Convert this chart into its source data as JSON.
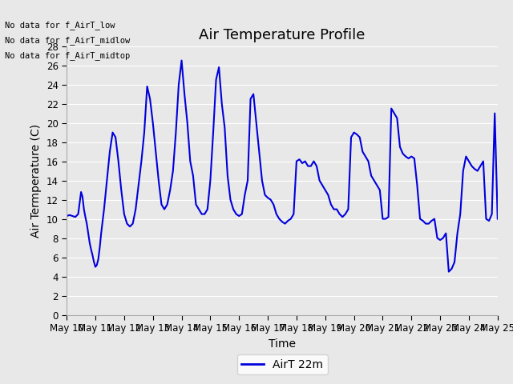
{
  "title": "Air Temperature Profile",
  "xlabel": "Time",
  "ylabel": "Air Termperature (C)",
  "ylim": [
    0,
    28
  ],
  "yticks": [
    0,
    2,
    4,
    6,
    8,
    10,
    12,
    14,
    16,
    18,
    20,
    22,
    24,
    26,
    28
  ],
  "line_color": "#0000dd",
  "line_width": 1.5,
  "legend_label": "AirT 22m",
  "no_data_texts": [
    "No data for f_AirT_low",
    "No data for f_AirT_midlow",
    "No data for f_AirT_midtop"
  ],
  "bg_color": "#e8e8e8",
  "plot_bg_color": "#e8e8e8",
  "grid_color": "#ffffff",
  "title_fontsize": 13,
  "axis_fontsize": 10,
  "tick_fontsize": 8.5,
  "xtick_labels": [
    "May 10",
    "May 11",
    "May 12",
    "May 13",
    "May 14",
    "May 15",
    "May 16",
    "May 17",
    "May 18",
    "May 19",
    "May 20",
    "May 21",
    "May 22",
    "May 23",
    "May 24",
    "May 25"
  ],
  "timestamps": [
    0.0,
    0.1,
    0.2,
    0.3,
    0.4,
    0.5,
    0.55,
    0.6,
    0.65,
    0.7,
    0.75,
    0.8,
    0.85,
    0.9,
    0.95,
    1.0,
    1.05,
    1.1,
    1.15,
    1.2,
    1.3,
    1.4,
    1.5,
    1.6,
    1.7,
    1.8,
    1.9,
    2.0,
    2.1,
    2.2,
    2.3,
    2.4,
    2.5,
    2.6,
    2.7,
    2.8,
    2.9,
    3.0,
    3.1,
    3.2,
    3.3,
    3.4,
    3.5,
    3.6,
    3.7,
    3.8,
    3.9,
    4.0,
    4.1,
    4.2,
    4.3,
    4.4,
    4.5,
    4.6,
    4.7,
    4.8,
    4.9,
    5.0,
    5.1,
    5.2,
    5.3,
    5.4,
    5.5,
    5.6,
    5.7,
    5.8,
    5.9,
    6.0,
    6.1,
    6.2,
    6.3,
    6.4,
    6.5,
    6.6,
    6.7,
    6.8,
    6.9,
    7.0,
    7.1,
    7.2,
    7.3,
    7.4,
    7.5,
    7.6,
    7.7,
    7.8,
    7.9,
    8.0,
    8.1,
    8.2,
    8.3,
    8.4,
    8.5,
    8.6,
    8.7,
    8.8,
    8.9,
    9.0,
    9.1,
    9.2,
    9.3,
    9.4,
    9.5,
    9.6,
    9.7,
    9.8,
    9.9,
    10.0,
    10.1,
    10.2,
    10.3,
    10.4,
    10.5,
    10.6,
    10.7,
    10.8,
    10.9,
    11.0,
    11.1,
    11.2,
    11.3,
    11.4,
    11.5,
    11.6,
    11.7,
    11.8,
    11.9,
    12.0,
    12.1,
    12.2,
    12.3,
    12.4,
    12.5,
    12.6,
    12.7,
    12.8,
    12.9,
    13.0,
    13.1,
    13.2,
    13.3,
    13.4,
    13.5,
    13.6,
    13.7,
    13.8,
    13.9,
    14.0,
    14.1,
    14.2,
    14.3,
    14.4,
    14.5,
    14.6,
    14.7,
    14.8,
    14.9,
    15.0
  ],
  "temperatures": [
    10.3,
    10.4,
    10.3,
    10.2,
    10.5,
    12.8,
    12.3,
    11.0,
    10.2,
    9.5,
    8.5,
    7.5,
    6.8,
    6.2,
    5.5,
    5.0,
    5.2,
    5.8,
    7.0,
    8.5,
    11.0,
    14.0,
    17.0,
    19.0,
    18.5,
    16.0,
    13.0,
    10.5,
    9.5,
    9.2,
    9.5,
    11.0,
    13.5,
    16.0,
    19.0,
    23.8,
    22.5,
    20.0,
    17.0,
    14.0,
    11.5,
    11.0,
    11.5,
    13.0,
    15.0,
    19.0,
    24.0,
    26.5,
    23.0,
    20.0,
    16.0,
    14.5,
    11.5,
    11.0,
    10.5,
    10.5,
    11.0,
    14.0,
    19.0,
    24.5,
    25.8,
    22.0,
    19.5,
    14.5,
    12.0,
    11.0,
    10.5,
    10.3,
    10.5,
    12.5,
    14.0,
    22.5,
    23.0,
    20.0,
    17.0,
    14.0,
    12.5,
    12.2,
    12.0,
    11.5,
    10.5,
    10.0,
    9.7,
    9.5,
    9.8,
    10.0,
    10.5,
    16.0,
    16.2,
    15.8,
    16.0,
    15.5,
    15.5,
    16.0,
    15.5,
    14.0,
    13.5,
    13.0,
    12.5,
    11.5,
    11.0,
    11.0,
    10.5,
    10.2,
    10.5,
    11.0,
    18.5,
    19.0,
    18.8,
    18.5,
    17.0,
    16.5,
    16.0,
    14.5,
    14.0,
    13.5,
    13.0,
    10.0,
    10.0,
    10.2,
    21.5,
    21.0,
    20.5,
    17.5,
    16.8,
    16.5,
    16.3,
    16.5,
    16.3,
    13.5,
    10.0,
    9.8,
    9.5,
    9.5,
    9.8,
    10.0,
    8.0,
    7.8,
    8.0,
    8.5,
    4.5,
    4.8,
    5.5,
    8.5,
    10.5,
    15.0,
    16.5,
    16.0,
    15.5,
    15.2,
    15.0,
    15.5,
    16.0,
    10.0,
    9.8,
    10.5,
    21.0,
    10.0
  ]
}
